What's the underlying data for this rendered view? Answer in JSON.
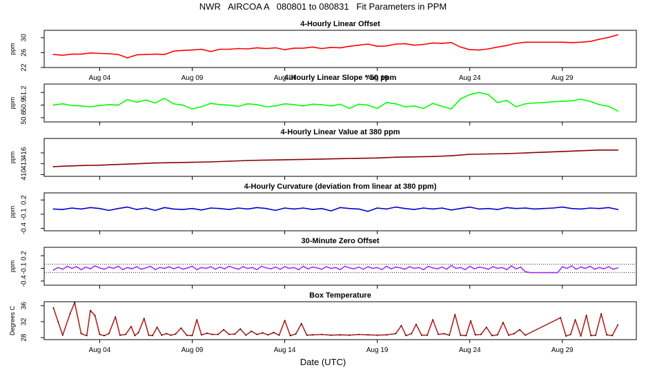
{
  "figure": {
    "title": "NWR   AIRCOA A   080801 to 080831   Fit Parameters in PPM",
    "xlabel": "Date (UTC)"
  },
  "chart_data": [
    {
      "type": "line",
      "title": "4-Hourly Linear Offset",
      "ylabel": "ppm",
      "color": "#ff0000",
      "xlim": [
        1,
        33
      ],
      "ylim": [
        22,
        32
      ],
      "yticks": [
        22,
        26,
        30
      ],
      "xticks": [
        {
          "x": 4,
          "label": "Aug 04"
        },
        {
          "x": 9,
          "label": "Aug 09"
        },
        {
          "x": 14,
          "label": "Aug 14"
        },
        {
          "x": 19,
          "label": "Aug 19"
        },
        {
          "x": 24,
          "label": "Aug 24"
        },
        {
          "x": 29,
          "label": "Aug 29"
        }
      ],
      "x": [
        1.5,
        2,
        2.5,
        3,
        3.5,
        4,
        4.5,
        5,
        5.5,
        6,
        6.5,
        7,
        7.5,
        8,
        8.5,
        9,
        9.5,
        10,
        10.5,
        11,
        11.5,
        12,
        12.5,
        13,
        13.5,
        14,
        14.5,
        15,
        15.5,
        16,
        16.5,
        17,
        17.5,
        18,
        18.5,
        19,
        19.5,
        20,
        20.5,
        21,
        21.5,
        22,
        22.5,
        23,
        23.5,
        24,
        24.5,
        25,
        25.5,
        26,
        26.5,
        27,
        27.5,
        28,
        28.5,
        29,
        29.5,
        30,
        30.5,
        31,
        31.5,
        32
      ],
      "y": [
        25.5,
        25.3,
        25.6,
        25.6,
        25.9,
        25.8,
        25.7,
        25.5,
        24.6,
        25.4,
        25.5,
        25.6,
        25.5,
        26.4,
        26.6,
        26.7,
        26.9,
        26.3,
        26.9,
        26.9,
        27.1,
        27.0,
        27.3,
        27.1,
        27.3,
        26.8,
        27.2,
        27.2,
        27.5,
        27.1,
        27.4,
        27.3,
        27.7,
        28.0,
        28.3,
        27.7,
        27.8,
        28.3,
        28.4,
        28.0,
        28.2,
        28.6,
        28.5,
        28.7,
        27.5,
        26.8,
        26.7,
        27.0,
        27.5,
        27.9,
        28.5,
        28.8,
        28.8,
        28.8,
        28.8,
        28.8,
        28.7,
        28.8,
        29.0,
        29.6,
        30.1,
        30.8
      ]
    },
    {
      "type": "line",
      "title": "4-Hourly Linear Slope * 50 ppm",
      "ylabel": "ppm",
      "color": "#00ff00",
      "xlim": [
        1,
        33
      ],
      "ylim": [
        50.5,
        51.4
      ],
      "yticks": [
        50.6,
        50.9,
        51.2
      ],
      "xticks": [
        {
          "x": 4,
          "label": ""
        },
        {
          "x": 9,
          "label": ""
        },
        {
          "x": 14,
          "label": ""
        },
        {
          "x": 19,
          "label": ""
        },
        {
          "x": 24,
          "label": ""
        },
        {
          "x": 29,
          "label": ""
        }
      ],
      "x": [
        1.5,
        2,
        2.5,
        3,
        3.5,
        4,
        4.5,
        5,
        5.5,
        6,
        6.5,
        7,
        7.5,
        8,
        8.5,
        9,
        9.5,
        10,
        10.5,
        11,
        11.5,
        12,
        12.5,
        13,
        13.5,
        14,
        14.5,
        15,
        15.5,
        16,
        16.5,
        17,
        17.5,
        18,
        18.5,
        19,
        19.5,
        20,
        20.5,
        21,
        21.5,
        22,
        22.5,
        23,
        23.5,
        24,
        24.5,
        25,
        25.5,
        26,
        26.5,
        27,
        27.5,
        28,
        28.5,
        29,
        29.5,
        30,
        30.5,
        31,
        31.5,
        32
      ],
      "y": [
        50.9,
        50.93,
        50.89,
        50.88,
        50.86,
        50.89,
        50.91,
        50.9,
        51.03,
        50.97,
        51.02,
        50.95,
        51.06,
        50.93,
        50.9,
        50.81,
        50.86,
        50.94,
        50.91,
        50.9,
        50.87,
        50.93,
        50.91,
        50.86,
        50.88,
        50.93,
        50.91,
        50.88,
        50.92,
        50.91,
        50.88,
        50.92,
        50.82,
        50.92,
        50.9,
        50.82,
        50.96,
        50.93,
        50.86,
        50.88,
        50.82,
        50.94,
        50.87,
        50.81,
        51.05,
        51.15,
        51.2,
        51.15,
        50.96,
        51.01,
        50.86,
        50.93,
        50.95,
        50.96,
        50.98,
        50.99,
        51.0,
        51.04,
        50.99,
        50.91,
        50.87,
        50.76
      ]
    },
    {
      "type": "line",
      "title": "4-Hourly Linear Value at 380 ppm",
      "ylabel": "ppm",
      "color": "#8b0000",
      "xlim": [
        1,
        33
      ],
      "ylim": [
        409.5,
        420
      ],
      "yticks": [
        410,
        413,
        416
      ],
      "xticks": [
        {
          "x": 4,
          "label": ""
        },
        {
          "x": 9,
          "label": ""
        },
        {
          "x": 14,
          "label": ""
        },
        {
          "x": 19,
          "label": ""
        },
        {
          "x": 24,
          "label": ""
        },
        {
          "x": 29,
          "label": ""
        }
      ],
      "x": [
        1.5,
        2,
        3,
        4,
        5,
        6,
        7,
        8,
        9,
        10,
        11,
        12,
        13,
        14,
        15,
        16,
        17,
        18,
        19,
        20,
        21,
        22,
        23,
        24,
        25,
        26,
        27,
        28,
        29,
        30,
        31,
        32
      ],
      "y": [
        412.2,
        412.3,
        412.5,
        412.6,
        412.8,
        413.0,
        413.2,
        413.3,
        413.4,
        413.5,
        413.7,
        413.9,
        414.0,
        414.1,
        414.2,
        414.3,
        414.4,
        414.5,
        414.6,
        414.8,
        414.9,
        415.0,
        415.2,
        415.6,
        415.7,
        415.8,
        416.0,
        416.2,
        416.4,
        416.6,
        416.8,
        416.8
      ]
    },
    {
      "type": "line",
      "title": "4-Hourly Curvature (deviation from linear at 380 ppm)",
      "ylabel": "ppm",
      "color": "#0000cc",
      "xlim": [
        1,
        33
      ],
      "ylim": [
        -0.45,
        0.35
      ],
      "yticks": [
        -0.4,
        -0.1,
        0.2
      ],
      "xticks": [
        {
          "x": 4,
          "label": ""
        },
        {
          "x": 9,
          "label": ""
        },
        {
          "x": 14,
          "label": ""
        },
        {
          "x": 19,
          "label": ""
        },
        {
          "x": 24,
          "label": ""
        },
        {
          "x": 29,
          "label": ""
        }
      ],
      "x": [
        1.5,
        2,
        2.5,
        3,
        3.5,
        4,
        4.5,
        5,
        5.5,
        6,
        6.5,
        7,
        7.5,
        8,
        8.5,
        9,
        9.5,
        10,
        10.5,
        11,
        11.5,
        12,
        12.5,
        13,
        13.5,
        14,
        14.5,
        15,
        15.5,
        16,
        16.5,
        17,
        17.5,
        18,
        18.5,
        19,
        19.5,
        20,
        20.5,
        21,
        21.5,
        22,
        22.5,
        23,
        23.5,
        24,
        24.5,
        25,
        25.5,
        26,
        26.5,
        27,
        27.5,
        28,
        28.5,
        29,
        29.5,
        30,
        30.5,
        31,
        31.5,
        32
      ],
      "y": [
        0.01,
        0.0,
        0.03,
        0.01,
        0.04,
        0.02,
        -0.02,
        0.02,
        0.05,
        0.0,
        0.03,
        -0.02,
        0.04,
        0.01,
        0.0,
        0.02,
        -0.01,
        0.03,
        0.02,
        0.0,
        0.03,
        0.01,
        0.04,
        0.02,
        -0.02,
        0.03,
        0.01,
        0.03,
        0.0,
        0.02,
        -0.03,
        0.04,
        0.02,
        0.01,
        -0.04,
        0.03,
        0.01,
        0.05,
        0.02,
        0.0,
        0.03,
        0.01,
        0.03,
        -0.01,
        0.02,
        0.05,
        0.01,
        0.02,
        0.0,
        0.04,
        0.02,
        0.03,
        0.01,
        0.02,
        0.03,
        0.05,
        0.02,
        0.01,
        0.03,
        0.02,
        0.04,
        0.0
      ]
    },
    {
      "type": "line",
      "title": "30-Minute Zero Offset",
      "ylabel": "ppm",
      "color": "#9b30ff",
      "xlim": [
        1,
        33
      ],
      "ylim": [
        -0.5,
        0.4
      ],
      "yticks": [
        -0.4,
        -0.1,
        0.2
      ],
      "xticks": [
        {
          "x": 4,
          "label": ""
        },
        {
          "x": 9,
          "label": ""
        },
        {
          "x": 14,
          "label": ""
        },
        {
          "x": 19,
          "label": ""
        },
        {
          "x": 24,
          "label": ""
        },
        {
          "x": 29,
          "label": ""
        }
      ],
      "reference_lines": [
        0.0,
        -0.2
      ],
      "x": [
        1.5,
        1.75,
        2,
        2.25,
        2.5,
        2.75,
        3,
        3.25,
        3.5,
        3.75,
        4,
        4.25,
        4.5,
        4.75,
        5,
        5.25,
        5.5,
        5.75,
        6,
        6.25,
        6.5,
        6.75,
        7,
        7.25,
        7.5,
        7.75,
        8,
        8.25,
        8.5,
        8.75,
        9,
        9.25,
        9.5,
        9.75,
        10,
        10.25,
        10.5,
        10.75,
        11,
        11.25,
        11.5,
        11.75,
        12,
        12.25,
        12.5,
        12.75,
        13,
        13.25,
        13.5,
        13.75,
        14,
        14.25,
        14.5,
        14.75,
        15,
        15.25,
        15.5,
        15.75,
        16,
        16.25,
        16.5,
        16.75,
        17,
        17.25,
        17.5,
        17.75,
        18,
        18.25,
        18.5,
        18.75,
        19,
        19.25,
        19.5,
        19.75,
        20,
        20.25,
        20.5,
        20.75,
        21,
        21.25,
        21.5,
        21.75,
        22,
        22.25,
        22.5,
        22.75,
        23,
        23.25,
        23.5,
        23.75,
        24,
        24.25,
        24.5,
        24.75,
        25,
        25.25,
        25.5,
        25.75,
        26,
        26.25,
        26.5,
        26.75,
        27,
        27.25,
        27.5,
        27.75,
        28,
        28.25,
        28.5,
        28.75,
        29,
        29.25,
        29.5,
        29.75,
        30,
        30.25,
        30.5,
        30.75,
        31,
        31.25,
        31.5,
        31.75,
        32
      ],
      "y": [
        -0.14,
        -0.08,
        -0.12,
        -0.05,
        -0.1,
        -0.06,
        -0.13,
        -0.07,
        -0.11,
        -0.04,
        -0.09,
        -0.12,
        -0.07,
        -0.1,
        -0.05,
        -0.13,
        -0.08,
        -0.11,
        -0.06,
        -0.12,
        -0.09,
        -0.05,
        -0.13,
        -0.08,
        -0.1,
        -0.06,
        -0.11,
        -0.07,
        -0.12,
        -0.09,
        -0.05,
        -0.13,
        -0.08,
        -0.1,
        -0.06,
        -0.12,
        -0.07,
        -0.11,
        -0.05,
        -0.09,
        -0.12,
        -0.06,
        -0.1,
        -0.08,
        -0.13,
        -0.05,
        -0.09,
        -0.11,
        -0.07,
        -0.12,
        -0.06,
        -0.1,
        -0.08,
        -0.13,
        -0.05,
        -0.11,
        -0.07,
        -0.09,
        -0.12,
        -0.06,
        -0.1,
        -0.08,
        -0.13,
        -0.05,
        -0.09,
        -0.11,
        -0.07,
        -0.12,
        -0.06,
        -0.1,
        -0.08,
        -0.13,
        -0.05,
        -0.11,
        -0.07,
        -0.09,
        -0.12,
        -0.06,
        -0.1,
        -0.08,
        -0.13,
        -0.05,
        -0.09,
        -0.11,
        -0.07,
        -0.12,
        -0.03,
        -0.1,
        -0.08,
        -0.13,
        -0.05,
        -0.11,
        -0.07,
        -0.09,
        -0.12,
        -0.06,
        -0.1,
        -0.08,
        -0.13,
        -0.04,
        -0.11,
        -0.07,
        -0.18,
        -0.2,
        -0.2,
        -0.2,
        -0.2,
        -0.2,
        -0.2,
        -0.2,
        -0.06,
        -0.1,
        -0.04,
        -0.12,
        -0.07,
        -0.1,
        -0.05,
        -0.12,
        -0.08,
        -0.11,
        -0.06,
        -0.12,
        -0.09
      ]
    },
    {
      "type": "line",
      "title": "Box Temperature",
      "ylabel": "Degrees C",
      "color": "#b22222",
      "xlim": [
        1,
        33
      ],
      "ylim": [
        27.5,
        37
      ],
      "yticks": [
        28,
        32,
        36
      ],
      "xticks": [
        {
          "x": 4,
          "label": "Aug 04"
        },
        {
          "x": 9,
          "label": "Aug 09"
        },
        {
          "x": 14,
          "label": "Aug 14"
        },
        {
          "x": 19,
          "label": "Aug 19"
        },
        {
          "x": 24,
          "label": "Aug 24"
        },
        {
          "x": 29,
          "label": "Aug 29"
        }
      ],
      "x": [
        1.5,
        1.75,
        2.0,
        2.4,
        2.65,
        3.0,
        3.3,
        3.5,
        3.75,
        4.0,
        4.25,
        4.5,
        4.85,
        5.1,
        5.4,
        5.7,
        5.9,
        6.1,
        6.4,
        6.65,
        6.85,
        7.1,
        7.35,
        7.6,
        7.85,
        8.1,
        8.4,
        8.7,
        9.0,
        9.25,
        9.5,
        9.8,
        10.1,
        10.4,
        10.7,
        11.0,
        11.3,
        11.6,
        11.9,
        12.2,
        12.5,
        12.8,
        13.1,
        13.4,
        13.7,
        14.0,
        14.3,
        14.6,
        14.9,
        15.2,
        15.5,
        16,
        16.5,
        17,
        17.5,
        18,
        18.5,
        19,
        19.5,
        20,
        20.3,
        20.55,
        20.85,
        21.1,
        21.4,
        21.7,
        22.0,
        22.3,
        22.6,
        22.9,
        23.2,
        23.5,
        23.8,
        24.05,
        24.3,
        24.6,
        24.9,
        25.2,
        25.5,
        25.8,
        26.1,
        26.4,
        26.7,
        27.0,
        28.9,
        29.2,
        29.45,
        29.7,
        30.0,
        30.3,
        30.55,
        30.8,
        31.1,
        31.4,
        31.7,
        32.0
      ],
      "y": [
        35.5,
        32.0,
        28.6,
        34.0,
        36.8,
        29.0,
        28.5,
        34.8,
        33.5,
        28.8,
        28.5,
        29.0,
        33.2,
        28.6,
        28.8,
        30.8,
        28.5,
        29.3,
        32.8,
        28.6,
        28.5,
        30.6,
        28.6,
        29.0,
        28.6,
        28.9,
        30.4,
        28.6,
        28.5,
        32.5,
        28.7,
        29.1,
        28.8,
        28.8,
        30.0,
        28.8,
        28.9,
        30.2,
        28.6,
        29.6,
        28.8,
        29.2,
        28.7,
        29.3,
        28.6,
        32.3,
        28.5,
        28.9,
        31.5,
        28.6,
        28.7,
        28.8,
        28.6,
        28.7,
        28.6,
        28.8,
        28.7,
        28.6,
        28.7,
        29.0,
        31.0,
        28.5,
        29.0,
        31.3,
        28.6,
        28.6,
        32.5,
        28.8,
        29.0,
        28.6,
        33.8,
        28.6,
        28.5,
        32.2,
        28.7,
        28.8,
        30.6,
        28.5,
        28.7,
        31.8,
        28.6,
        29.0,
        30.0,
        28.6,
        33.0,
        28.4,
        28.8,
        32.5,
        28.4,
        33.6,
        28.5,
        28.6,
        34.0,
        28.7,
        28.5,
        31.2
      ]
    }
  ]
}
